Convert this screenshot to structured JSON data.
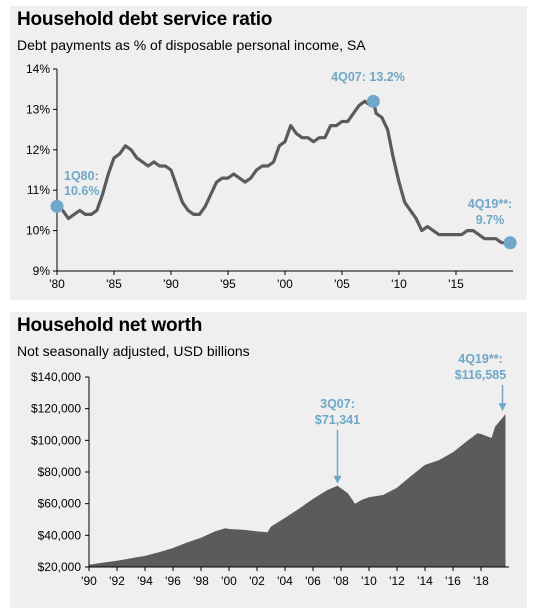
{
  "chart_data": [
    {
      "type": "line",
      "title": "Household debt service ratio",
      "subtitle": "Debt payments as % of disposable personal income, SA",
      "ylim": [
        9,
        14
      ],
      "xlim": [
        1980,
        2020
      ],
      "y_ticks": [
        "9%",
        "10%",
        "11%",
        "12%",
        "13%",
        "14%"
      ],
      "x_ticks": [
        "'80",
        "'85",
        "'90",
        "'95",
        "'00",
        "'05",
        "'10",
        "'15"
      ],
      "grid": false,
      "series": [
        {
          "color": "#5b5b5b",
          "x": [
            1980.0,
            1980.5,
            1981.0,
            1981.5,
            1982.0,
            1982.5,
            1983.0,
            1983.5,
            1984.0,
            1984.5,
            1985.0,
            1985.5,
            1986.0,
            1986.5,
            1987.0,
            1987.5,
            1988.0,
            1988.5,
            1989.0,
            1989.5,
            1990.0,
            1990.5,
            1991.0,
            1991.5,
            1992.0,
            1992.5,
            1993.0,
            1993.5,
            1994.0,
            1994.5,
            1995.0,
            1995.5,
            1996.0,
            1996.5,
            1997.0,
            1997.5,
            1998.0,
            1998.5,
            1999.0,
            1999.5,
            2000.0,
            2000.5,
            2001.0,
            2001.5,
            2002.0,
            2002.5,
            2003.0,
            2003.5,
            2004.0,
            2004.5,
            2005.0,
            2005.5,
            2006.0,
            2006.5,
            2007.0,
            2007.5,
            2007.75,
            2008.0,
            2008.5,
            2009.0,
            2009.5,
            2010.0,
            2010.5,
            2011.0,
            2011.5,
            2012.0,
            2012.5,
            2013.0,
            2013.5,
            2014.0,
            2014.5,
            2015.0,
            2015.5,
            2016.0,
            2016.5,
            2017.0,
            2017.5,
            2018.0,
            2018.5,
            2019.0,
            2019.75
          ],
          "values": [
            10.6,
            10.5,
            10.3,
            10.4,
            10.5,
            10.4,
            10.4,
            10.5,
            10.9,
            11.4,
            11.8,
            11.9,
            12.1,
            12.0,
            11.8,
            11.7,
            11.6,
            11.7,
            11.6,
            11.6,
            11.5,
            11.1,
            10.7,
            10.5,
            10.4,
            10.4,
            10.6,
            10.9,
            11.2,
            11.3,
            11.3,
            11.4,
            11.3,
            11.2,
            11.3,
            11.5,
            11.6,
            11.6,
            11.7,
            12.1,
            12.2,
            12.6,
            12.4,
            12.3,
            12.3,
            12.2,
            12.3,
            12.3,
            12.6,
            12.6,
            12.7,
            12.7,
            12.9,
            13.1,
            13.2,
            13.1,
            13.2,
            12.9,
            12.8,
            12.5,
            11.8,
            11.2,
            10.7,
            10.5,
            10.3,
            10.0,
            10.1,
            10.0,
            9.9,
            9.9,
            9.9,
            9.9,
            9.9,
            10.0,
            10.0,
            9.9,
            9.8,
            9.8,
            9.8,
            9.7,
            9.7
          ]
        }
      ],
      "annotations": [
        {
          "label": "1Q80:",
          "value_label": "10.6%",
          "x": 1980.0,
          "y": 10.6
        },
        {
          "label": "4Q07: 13.2%",
          "x": 2007.75,
          "y": 13.2
        },
        {
          "label": "4Q19**:",
          "value_label": "9.7%",
          "x": 2019.75,
          "y": 9.7
        }
      ]
    },
    {
      "type": "area",
      "title": "Household net worth",
      "subtitle": "Not seasonally adjusted, USD billions",
      "ylim": [
        20000,
        140000
      ],
      "xlim": [
        1990,
        2020
      ],
      "y_ticks": [
        "$20,000",
        "$40,000",
        "$60,000",
        "$80,000",
        "$100,000",
        "$120,000",
        "$140,000"
      ],
      "x_ticks": [
        "'90",
        "'92",
        "'94",
        "'96",
        "'98",
        "'00",
        "'02",
        "'04",
        "'06",
        "'08",
        "'10",
        "'12",
        "'14",
        "'16",
        "'18"
      ],
      "grid": false,
      "series": [
        {
          "color": "#5b5b5b",
          "x": [
            1990.0,
            1991.0,
            1992.0,
            1993.0,
            1994.0,
            1995.0,
            1996.0,
            1997.0,
            1998.0,
            1999.0,
            1999.75,
            2000.0,
            2001.0,
            2002.0,
            2002.75,
            2003.0,
            2004.0,
            2005.0,
            2006.0,
            2007.0,
            2007.75,
            2008.5,
            2009.0,
            2009.5,
            2010.0,
            2011.0,
            2012.0,
            2013.0,
            2014.0,
            2015.0,
            2016.0,
            2017.0,
            2017.75,
            2018.0,
            2018.75,
            2019.0,
            2019.75
          ],
          "values": [
            21400,
            22800,
            24000,
            25500,
            27000,
            29300,
            32000,
            35500,
            38500,
            42500,
            44500,
            44000,
            43500,
            42500,
            42000,
            45500,
            51000,
            56800,
            63000,
            68500,
            71341,
            66500,
            60000,
            62500,
            64000,
            65500,
            70000,
            77500,
            84500,
            87500,
            92500,
            99500,
            104500,
            104000,
            101500,
            108500,
            116585
          ]
        }
      ],
      "annotations": [
        {
          "label": "3Q07:",
          "value_label": "$71,341",
          "x": 2007.75,
          "y": 71341
        },
        {
          "label": "4Q19**:",
          "value_label": "$116,585",
          "x": 2019.75,
          "y": 116585
        }
      ]
    }
  ]
}
